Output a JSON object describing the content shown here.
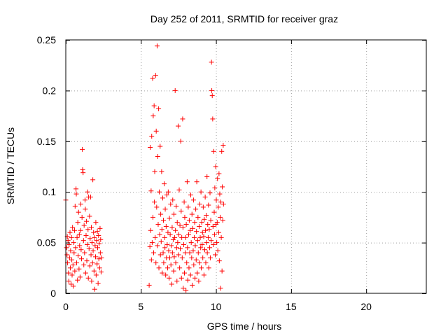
{
  "chart_data": {
    "type": "scatter",
    "title": "Day 252 of 2011, SRMTID for receiver graz",
    "xlabel": "GPS time / hours",
    "ylabel": "SRMTID / TECUs",
    "xlim": [
      0,
      24
    ],
    "ylim": [
      0,
      0.25
    ],
    "xticks": [
      0,
      5,
      10,
      15,
      20
    ],
    "xtick_labels": [
      "0",
      "5",
      "10",
      "15",
      "20"
    ],
    "yticks": [
      0,
      0.05,
      0.1,
      0.15,
      0.2,
      0.25
    ],
    "ytick_labels": [
      "0",
      "0.05",
      "0.1",
      "0.15",
      "0.2",
      "0.25"
    ],
    "grid": true,
    "marker": "+",
    "color": "#ff0000",
    "series": [
      {
        "name": "SRMTID",
        "points": [
          [
            0.0,
            0.092
          ],
          [
            0.05,
            0.045
          ],
          [
            0.08,
            0.038
          ],
          [
            0.1,
            0.056
          ],
          [
            0.12,
            0.03
          ],
          [
            0.15,
            0.052
          ],
          [
            0.18,
            0.02
          ],
          [
            0.2,
            0.012
          ],
          [
            0.22,
            0.048
          ],
          [
            0.25,
            0.035
          ],
          [
            0.28,
            0.06
          ],
          [
            0.3,
            0.025
          ],
          [
            0.32,
            0.042
          ],
          [
            0.35,
            0.009
          ],
          [
            0.38,
            0.055
          ],
          [
            0.4,
            0.033
          ],
          [
            0.42,
            0.018
          ],
          [
            0.45,
            0.065
          ],
          [
            0.48,
            0.028
          ],
          [
            0.5,
            0.007
          ],
          [
            0.52,
            0.05
          ],
          [
            0.55,
            0.04
          ],
          [
            0.58,
            0.062
          ],
          [
            0.6,
            0.022
          ],
          [
            0.62,
            0.086
          ],
          [
            0.65,
            0.045
          ],
          [
            0.68,
            0.103
          ],
          [
            0.7,
            0.098
          ],
          [
            0.72,
            0.03
          ],
          [
            0.75,
            0.055
          ],
          [
            0.78,
            0.013
          ],
          [
            0.8,
            0.07
          ],
          [
            0.82,
            0.037
          ],
          [
            0.85,
            0.08
          ],
          [
            0.88,
            0.024
          ],
          [
            0.9,
            0.058
          ],
          [
            0.92,
            0.047
          ],
          [
            0.95,
            0.016
          ],
          [
            0.98,
            0.062
          ],
          [
            1.0,
            0.088
          ],
          [
            1.02,
            0.043
          ],
          [
            1.05,
            0.034
          ],
          [
            1.08,
            0.075
          ],
          [
            1.1,
            0.142
          ],
          [
            1.12,
            0.122
          ],
          [
            1.15,
            0.119
          ],
          [
            1.18,
            0.052
          ],
          [
            1.2,
            0.028
          ],
          [
            1.22,
            0.067
          ],
          [
            1.25,
            0.04
          ],
          [
            1.28,
            0.092
          ],
          [
            1.3,
            0.083
          ],
          [
            1.32,
            0.02
          ],
          [
            1.35,
            0.057
          ],
          [
            1.38,
            0.071
          ],
          [
            1.4,
            0.032
          ],
          [
            1.42,
            0.048
          ],
          [
            1.45,
            0.1
          ],
          [
            1.48,
            0.063
          ],
          [
            1.5,
            0.015
          ],
          [
            1.52,
            0.095
          ],
          [
            1.55,
            0.044
          ],
          [
            1.58,
            0.076
          ],
          [
            1.6,
            0.027
          ],
          [
            1.62,
            0.054
          ],
          [
            1.65,
            0.095
          ],
          [
            1.68,
            0.038
          ],
          [
            1.7,
            0.065
          ],
          [
            1.72,
            0.012
          ],
          [
            1.75,
            0.05
          ],
          [
            1.78,
            0.03
          ],
          [
            1.8,
            0.112
          ],
          [
            1.82,
            0.042
          ],
          [
            1.85,
            0.06
          ],
          [
            1.88,
            0.022
          ],
          [
            1.9,
            0.055
          ],
          [
            1.92,
            0.004
          ],
          [
            1.95,
            0.047
          ],
          [
            1.98,
            0.036
          ],
          [
            2.0,
            0.07
          ],
          [
            2.02,
            0.018
          ],
          [
            2.05,
            0.052
          ],
          [
            2.08,
            0.029
          ],
          [
            2.1,
            0.061
          ],
          [
            2.12,
            0.045
          ],
          [
            2.15,
            0.01
          ],
          [
            2.18,
            0.057
          ],
          [
            2.2,
            0.034
          ],
          [
            2.22,
            0.049
          ],
          [
            2.25,
            0.025
          ],
          [
            2.28,
            0.064
          ],
          [
            2.3,
            0.04
          ],
          [
            2.32,
            0.053
          ],
          [
            2.35,
            0.021
          ],
          [
            2.38,
            0.035
          ],
          [
            5.55,
            0.008
          ],
          [
            5.6,
            0.046
          ],
          [
            5.62,
            0.144
          ],
          [
            5.65,
            0.062
          ],
          [
            5.68,
            0.101
          ],
          [
            5.7,
            0.033
          ],
          [
            5.72,
            0.155
          ],
          [
            5.75,
            0.05
          ],
          [
            5.78,
            0.212
          ],
          [
            5.8,
            0.075
          ],
          [
            5.82,
            0.175
          ],
          [
            5.85,
            0.04
          ],
          [
            5.88,
            0.185
          ],
          [
            5.9,
            0.09
          ],
          [
            5.92,
            0.12
          ],
          [
            5.95,
            0.055
          ],
          [
            5.98,
            0.215
          ],
          [
            6.0,
            0.03
          ],
          [
            6.02,
            0.16
          ],
          [
            6.05,
            0.085
          ],
          [
            6.08,
            0.244
          ],
          [
            6.1,
            0.047
          ],
          [
            6.12,
            0.135
          ],
          [
            6.15,
            0.068
          ],
          [
            6.18,
            0.182
          ],
          [
            6.2,
            0.025
          ],
          [
            6.22,
            0.1
          ],
          [
            6.25,
            0.058
          ],
          [
            6.28,
            0.145
          ],
          [
            6.3,
            0.038
          ],
          [
            6.32,
            0.078
          ],
          [
            6.35,
            0.051
          ],
          [
            6.38,
            0.12
          ],
          [
            6.4,
            0.063
          ],
          [
            6.42,
            0.02
          ],
          [
            6.45,
            0.094
          ],
          [
            6.48,
            0.04
          ],
          [
            6.5,
            0.072
          ],
          [
            6.52,
            0.03
          ],
          [
            6.55,
            0.108
          ],
          [
            6.58,
            0.055
          ],
          [
            6.6,
            0.045
          ],
          [
            6.62,
            0.083
          ],
          [
            6.65,
            0.018
          ],
          [
            6.68,
            0.066
          ],
          [
            6.7,
            0.035
          ],
          [
            6.72,
            0.097
          ],
          [
            6.75,
            0.048
          ],
          [
            6.78,
            0.025
          ],
          [
            6.8,
            0.06
          ],
          [
            6.82,
            0.1
          ],
          [
            6.85,
            0.042
          ],
          [
            6.88,
            0.015
          ],
          [
            6.9,
            0.074
          ],
          [
            6.92,
            0.035
          ],
          [
            6.95,
            0.058
          ],
          [
            6.98,
            0.088
          ],
          [
            7.0,
            0.028
          ],
          [
            7.02,
            0.047
          ],
          [
            7.05,
            0.009
          ],
          [
            7.08,
            0.065
          ],
          [
            7.1,
            0.04
          ],
          [
            7.12,
            0.092
          ],
          [
            7.15,
            0.053
          ],
          [
            7.18,
            0.022
          ],
          [
            7.2,
            0.078
          ],
          [
            7.22,
            0.036
          ],
          [
            7.25,
            0.055
          ],
          [
            7.28,
            0.2
          ],
          [
            7.3,
            0.062
          ],
          [
            7.32,
            0.03
          ],
          [
            7.35,
            0.086
          ],
          [
            7.38,
            0.045
          ],
          [
            7.4,
            0.012
          ],
          [
            7.42,
            0.07
          ],
          [
            7.45,
            0.05
          ],
          [
            7.48,
            0.165
          ],
          [
            7.5,
            0.038
          ],
          [
            7.52,
            0.058
          ],
          [
            7.55,
            0.102
          ],
          [
            7.58,
            0.025
          ],
          [
            7.6,
            0.067
          ],
          [
            7.62,
            0.044
          ],
          [
            7.65,
            0.15
          ],
          [
            7.68,
            0.081
          ],
          [
            7.7,
            0.015
          ],
          [
            7.72,
            0.055
          ],
          [
            7.75,
            0.035
          ],
          [
            7.78,
            0.172
          ],
          [
            7.8,
            0.065
          ],
          [
            7.82,
            0.005
          ],
          [
            7.85,
            0.048
          ],
          [
            7.88,
            0.09
          ],
          [
            7.9,
            0.02
          ],
          [
            7.92,
            0.075
          ],
          [
            7.95,
            0.04
          ],
          [
            7.98,
            0.055
          ],
          [
            8.0,
            0.003
          ],
          [
            8.02,
            0.068
          ],
          [
            8.05,
            0.03
          ],
          [
            8.08,
            0.11
          ],
          [
            8.1,
            0.045
          ],
          [
            8.12,
            0.013
          ],
          [
            8.15,
            0.085
          ],
          [
            8.18,
            0.058
          ],
          [
            8.2,
            0.025
          ],
          [
            8.22,
            0.072
          ],
          [
            8.25,
            0.04
          ],
          [
            8.28,
            0.062
          ],
          [
            8.3,
            0.018
          ],
          [
            8.32,
            0.097
          ],
          [
            8.35,
            0.05
          ],
          [
            8.38,
            0.035
          ],
          [
            8.4,
            0.078
          ],
          [
            8.42,
            0.008
          ],
          [
            8.45,
            0.064
          ],
          [
            8.48,
            0.042
          ],
          [
            8.5,
            0.092
          ],
          [
            8.52,
            0.028
          ],
          [
            8.55,
            0.055
          ],
          [
            8.58,
            0.07
          ],
          [
            8.6,
            0.015
          ],
          [
            8.62,
            0.047
          ],
          [
            8.65,
            0.083
          ],
          [
            8.68,
            0.033
          ],
          [
            8.7,
            0.061
          ],
          [
            8.72,
            0.11
          ],
          [
            8.75,
            0.02
          ],
          [
            8.78,
            0.052
          ],
          [
            8.8,
            0.075
          ],
          [
            8.82,
            0.04
          ],
          [
            8.85,
            0.012
          ],
          [
            8.88,
            0.066
          ],
          [
            8.9,
            0.03
          ],
          [
            8.92,
            0.088
          ],
          [
            8.95,
            0.055
          ],
          [
            8.98,
            0.045
          ],
          [
            9.0,
            0.1
          ],
          [
            9.02,
            0.025
          ],
          [
            9.05,
            0.07
          ],
          [
            9.08,
            0.048
          ],
          [
            9.1,
            0.06
          ],
          [
            9.12,
            0.035
          ],
          [
            9.15,
            0.085
          ],
          [
            9.18,
            0.056
          ],
          [
            9.2,
            0.018
          ],
          [
            9.22,
            0.073
          ],
          [
            9.25,
            0.043
          ],
          [
            9.28,
            0.095
          ],
          [
            9.3,
            0.062
          ],
          [
            9.32,
            0.03
          ],
          [
            9.35,
            0.077
          ],
          [
            9.38,
            0.05
          ],
          [
            9.4,
            0.115
          ],
          [
            9.42,
            0.04
          ],
          [
            9.45,
            0.068
          ],
          [
            9.48,
            0.055
          ],
          [
            9.5,
            0.087
          ],
          [
            9.52,
            0.025
          ],
          [
            9.55,
            0.063
          ],
          [
            9.58,
            0.045
          ],
          [
            9.6,
            0.099
          ],
          [
            9.62,
            0.035
          ],
          [
            9.65,
            0.072
          ],
          [
            9.68,
            0.052
          ],
          [
            9.7,
            0.228
          ],
          [
            9.72,
            0.2
          ],
          [
            9.75,
            0.195
          ],
          [
            9.78,
            0.172
          ],
          [
            9.8,
            0.066
          ],
          [
            9.82,
            0.048
          ],
          [
            9.85,
            0.14
          ],
          [
            9.88,
            0.08
          ],
          [
            9.9,
            0.058
          ],
          [
            9.92,
            0.104
          ],
          [
            9.95,
            0.038
          ],
          [
            9.98,
            0.125
          ],
          [
            10.0,
            0.068
          ],
          [
            10.02,
            0.092
          ],
          [
            10.05,
            0.05
          ],
          [
            10.08,
            0.07
          ],
          [
            10.1,
            0.113
          ],
          [
            10.12,
            0.042
          ],
          [
            10.15,
            0.085
          ],
          [
            10.18,
            0.06
          ],
          [
            10.2,
            0.118
          ],
          [
            10.22,
            0.032
          ],
          [
            10.25,
            0.098
          ],
          [
            10.28,
            0.075
          ],
          [
            10.3,
            0.005
          ],
          [
            10.32,
            0.09
          ],
          [
            10.35,
            0.055
          ],
          [
            10.38,
            0.14
          ],
          [
            10.4,
            0.022
          ],
          [
            10.42,
            0.105
          ],
          [
            10.45,
            0.072
          ],
          [
            10.48,
            0.146
          ],
          [
            10.5,
            0.088
          ]
        ]
      }
    ]
  }
}
